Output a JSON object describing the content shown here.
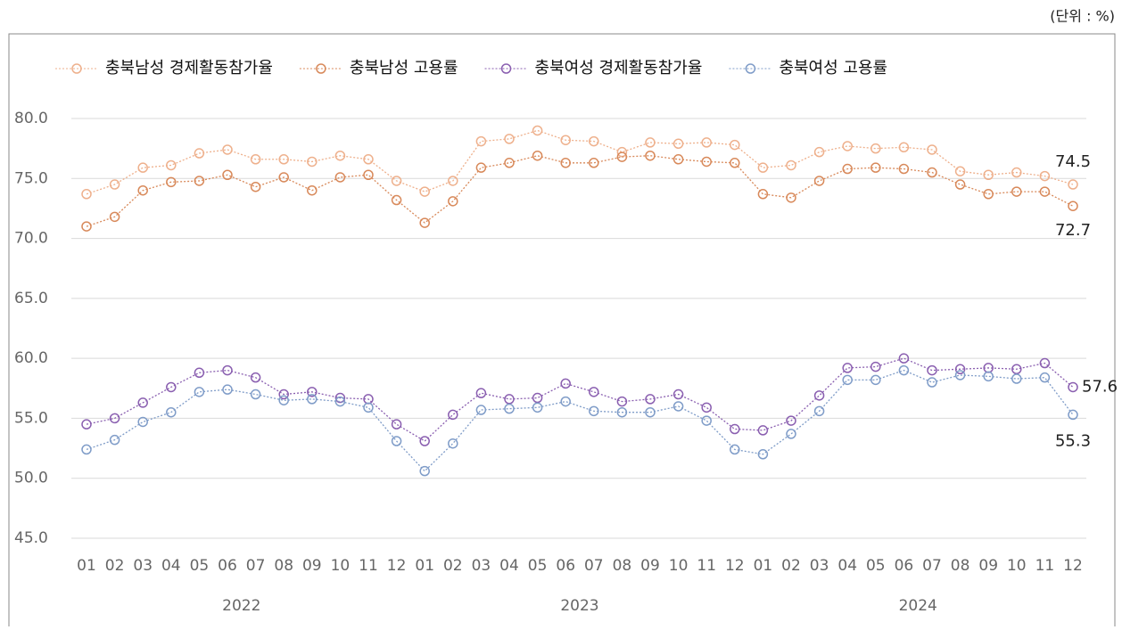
{
  "chart_data": {
    "type": "line",
    "unit_note": "(단위 : %)",
    "categories": [
      "01",
      "02",
      "03",
      "04",
      "05",
      "06",
      "07",
      "08",
      "09",
      "10",
      "11",
      "12",
      "01",
      "02",
      "03",
      "04",
      "05",
      "06",
      "07",
      "08",
      "09",
      "10",
      "11",
      "12",
      "01",
      "02",
      "03",
      "04",
      "05",
      "06",
      "07",
      "08",
      "09",
      "10",
      "11",
      "12"
    ],
    "year_groups": [
      "2022",
      "2023",
      "2024"
    ],
    "ylim": [
      45,
      80
    ],
    "yticks": [
      {
        "value": 45,
        "label": "45.0"
      },
      {
        "value": 50,
        "label": "50.0"
      },
      {
        "value": 55,
        "label": "55.0"
      },
      {
        "value": 60,
        "label": "60.0"
      },
      {
        "value": 65,
        "label": "65.0"
      },
      {
        "value": 70,
        "label": "70.0"
      },
      {
        "value": 75,
        "label": "75.0"
      },
      {
        "value": 80,
        "label": "80.0"
      }
    ],
    "grid": true,
    "series": [
      {
        "name": "충북남성 경제활동참가율",
        "color": "#eeb08c",
        "values": [
          73.7,
          74.5,
          75.9,
          76.1,
          77.1,
          77.4,
          76.6,
          76.6,
          76.4,
          76.9,
          76.6,
          74.8,
          73.9,
          74.8,
          78.1,
          78.3,
          79.0,
          78.2,
          78.1,
          77.2,
          78.0,
          77.9,
          78.0,
          77.8,
          75.9,
          76.1,
          77.2,
          77.7,
          77.5,
          77.6,
          77.4,
          75.6,
          75.3,
          75.5,
          75.2,
          74.5
        ]
      },
      {
        "name": "충북남성 고용률",
        "color": "#d8895a",
        "values": [
          71.0,
          71.8,
          74.0,
          74.7,
          74.8,
          75.3,
          74.3,
          75.1,
          74.0,
          75.1,
          75.3,
          73.2,
          71.3,
          73.1,
          75.9,
          76.3,
          76.9,
          76.3,
          76.3,
          76.8,
          76.9,
          76.6,
          76.4,
          76.3,
          73.7,
          73.4,
          74.8,
          75.8,
          75.9,
          75.8,
          75.5,
          74.5,
          73.7,
          73.9,
          73.9,
          72.7
        ]
      },
      {
        "name": "충북여성 경제활동참가율",
        "color": "#8a5fb0",
        "values": [
          54.5,
          55.0,
          56.3,
          57.6,
          58.8,
          59.0,
          58.4,
          57.0,
          57.2,
          56.7,
          56.6,
          54.5,
          53.1,
          55.3,
          57.1,
          56.6,
          56.7,
          57.9,
          57.2,
          56.4,
          56.6,
          57.0,
          55.9,
          54.1,
          54.0,
          54.8,
          56.9,
          59.2,
          59.3,
          60.0,
          59.0,
          59.1,
          59.2,
          59.1,
          59.6,
          57.6
        ]
      },
      {
        "name": "충북여성 고용률",
        "color": "#7f9cc8",
        "values": [
          52.4,
          53.2,
          54.7,
          55.5,
          57.2,
          57.4,
          57.0,
          56.5,
          56.6,
          56.4,
          55.9,
          53.1,
          50.6,
          52.9,
          55.7,
          55.8,
          55.9,
          56.4,
          55.6,
          55.5,
          55.5,
          56.0,
          54.8,
          52.4,
          52.0,
          53.7,
          55.6,
          58.2,
          58.2,
          59.0,
          58.0,
          58.6,
          58.5,
          58.3,
          58.4,
          55.3
        ]
      }
    ]
  }
}
